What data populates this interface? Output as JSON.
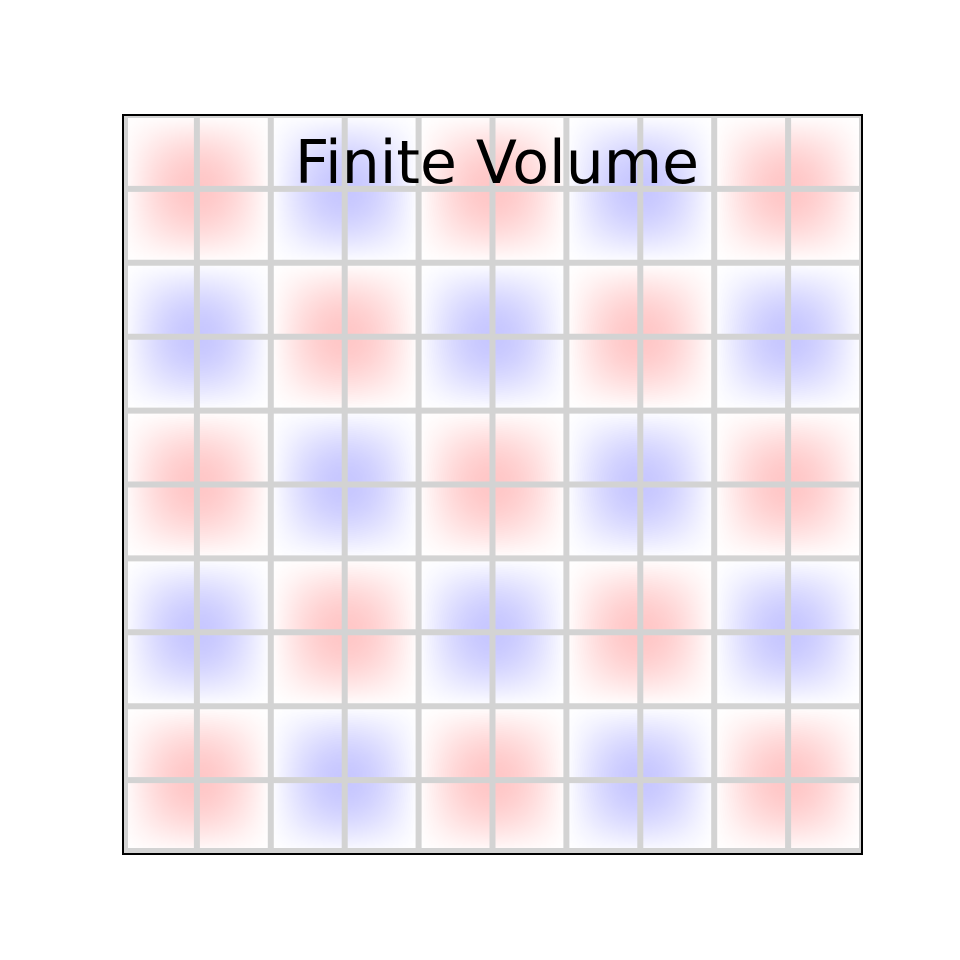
{
  "chart_data": {
    "type": "heatmap",
    "title": "Finite Volume",
    "xlabel": "",
    "ylabel": "",
    "grid": true,
    "rows": 10,
    "cols": 10,
    "colormap": "bwr",
    "value_range": [
      -1,
      1
    ],
    "field": {
      "description_free": false,
      "kx_cycles": 2.5,
      "ky_cycles": 2.5
    },
    "colors": {
      "positive": "#ff0000",
      "negative": "#0000ff",
      "zero": "#ffffff",
      "grid_line": "#d3d3d3",
      "frame": "#000000",
      "background": "#ffffff"
    }
  }
}
